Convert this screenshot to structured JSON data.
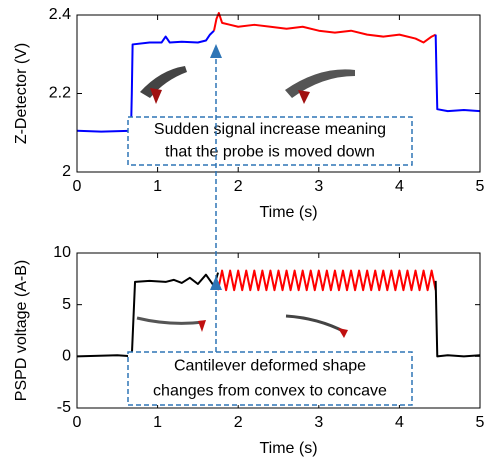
{
  "chart_data": [
    {
      "type": "line",
      "xlabel": "Time (s)",
      "ylabel": "Z-Detector (V)",
      "xlim": [
        0,
        5
      ],
      "xticks": [
        0,
        1,
        2,
        3,
        4,
        5
      ],
      "ylim": [
        2,
        2.4
      ],
      "yticks": [
        2,
        2.2,
        2.4
      ],
      "annotation": [
        "Sudden signal increase meaning",
        "that the probe is moved down"
      ],
      "series": [
        {
          "color": "#0000ff",
          "x": [
            0,
            0.3,
            0.67,
            0.68,
            0.69,
            0.9,
            1.05,
            1.1,
            1.15,
            1.3,
            1.5,
            1.6,
            1.65,
            1.7
          ],
          "values": [
            2.105,
            2.103,
            2.105,
            2.2,
            2.325,
            2.33,
            2.33,
            2.345,
            2.33,
            2.332,
            2.33,
            2.335,
            2.35,
            2.36
          ]
        },
        {
          "color": "#ff0000",
          "x": [
            1.7,
            1.73,
            1.76,
            1.8,
            1.9,
            2.0,
            2.2,
            2.4,
            2.6,
            2.8,
            3.0,
            3.2,
            3.4,
            3.6,
            3.8,
            4.0,
            4.2,
            4.3,
            4.4,
            4.45
          ],
          "values": [
            2.36,
            2.39,
            2.405,
            2.38,
            2.375,
            2.37,
            2.375,
            2.37,
            2.365,
            2.37,
            2.36,
            2.355,
            2.36,
            2.35,
            2.345,
            2.35,
            2.34,
            2.33,
            2.345,
            2.35
          ]
        },
        {
          "color": "#0000ff",
          "x": [
            4.45,
            4.46,
            4.47,
            4.6,
            4.8,
            5
          ],
          "values": [
            2.35,
            2.25,
            2.16,
            2.155,
            2.158,
            2.155
          ]
        }
      ]
    },
    {
      "type": "line",
      "xlabel": "Time (s)",
      "ylabel": "PSPD voltage (A-B)",
      "xlim": [
        0,
        5
      ],
      "xticks": [
        0,
        1,
        2,
        3,
        4,
        5
      ],
      "ylim": [
        -5,
        10
      ],
      "yticks": [
        -5,
        0,
        5,
        10
      ],
      "annotation": [
        "Cantilever deformed shape",
        "changes from convex to concave"
      ],
      "series": [
        {
          "color": "#000000",
          "x": [
            0,
            0.5,
            0.68,
            0.7,
            0.72,
            0.9,
            1.1,
            1.2,
            1.3,
            1.4,
            1.5,
            1.6,
            1.7,
            1.75
          ],
          "values": [
            0,
            0.1,
            0,
            3.6,
            7.2,
            7.3,
            7.2,
            7.4,
            7.1,
            7.6,
            7.0,
            7.9,
            6.8,
            8.1
          ]
        },
        {
          "color": "#ff0000",
          "x": [
            1.75,
            1.8,
            1.85,
            1.9,
            1.95,
            2,
            2.05,
            2.1,
            2.15,
            2.2,
            2.25,
            2.3,
            2.35,
            2.4,
            2.45,
            2.5,
            2.55,
            2.6,
            2.65,
            2.7,
            2.75,
            2.8,
            2.85,
            2.9,
            2.95,
            3,
            3.05,
            3.1,
            3.15,
            3.2,
            3.25,
            3.3,
            3.35,
            3.4,
            3.45,
            3.5,
            3.55,
            3.6,
            3.65,
            3.7,
            3.75,
            3.8,
            3.85,
            3.9,
            3.95,
            4,
            4.05,
            4.1,
            4.15,
            4.2,
            4.25,
            4.3,
            4.35,
            4.4,
            4.45
          ],
          "values": [
            6.4,
            8.3,
            6.4,
            8.3,
            6.4,
            8.3,
            6.4,
            8.3,
            6.4,
            8.3,
            6.4,
            8.3,
            6.4,
            8.3,
            6.4,
            8.3,
            6.4,
            8.3,
            6.4,
            8.3,
            6.4,
            8.3,
            6.4,
            8.3,
            6.4,
            8.3,
            6.4,
            8.3,
            6.4,
            8.3,
            6.4,
            8.3,
            6.4,
            8.3,
            6.4,
            8.3,
            6.4,
            8.3,
            6.4,
            8.3,
            6.4,
            8.3,
            6.4,
            8.3,
            6.4,
            8.3,
            6.4,
            8.3,
            6.4,
            8.3,
            6.4,
            8.3,
            6.4,
            8.3,
            6.4
          ]
        },
        {
          "color": "#000000",
          "x": [
            4.45,
            4.46,
            4.47,
            4.6,
            4.8,
            5
          ],
          "values": [
            7.3,
            3.6,
            0,
            0.1,
            0,
            0.1
          ]
        }
      ]
    }
  ]
}
